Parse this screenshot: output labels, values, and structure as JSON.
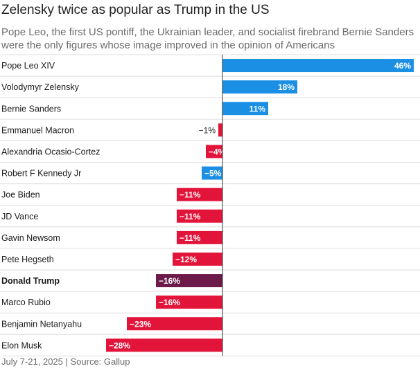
{
  "chart_data": {
    "type": "bar",
    "orientation": "horizontal",
    "title": "Zelensky twice as popular as Trump in the US",
    "subtitle": "Pope Leo, the first US pontiff, the Ukrainian leader, and socialist firebrand Bernie Sanders were the only figures whose image improved in the opinion of Americans",
    "categories": [
      "Pope Leo XIV",
      "Volodymyr Zelensky",
      "Bernie Sanders",
      "Emmanuel Macron",
      "Alexandria Ocasio-Cortez",
      "Robert F Kennedy Jr",
      "Joe Biden",
      "JD Vance",
      "Gavin Newsom",
      "Pete Hegseth",
      "Donald Trump",
      "Marco Rubio",
      "Benjamin Netanyahu",
      "Elon Musk"
    ],
    "values": [
      46,
      18,
      11,
      -1,
      -4,
      -5,
      -11,
      -11,
      -11,
      -12,
      -16,
      -16,
      -23,
      -28
    ],
    "value_labels": [
      "46%",
      "18%",
      "11%",
      "−1%",
      "−4%",
      "−5%",
      "−11%",
      "−11%",
      "−11%",
      "−12%",
      "−16%",
      "−16%",
      "−23%",
      "−28%"
    ],
    "bar_colors": [
      "#1a8fe3",
      "#1a8fe3",
      "#1a8fe3",
      "#e3143a",
      "#e3143a",
      "#1a8fe3",
      "#e3143a",
      "#e3143a",
      "#e3143a",
      "#e3143a",
      "#6b1a4a",
      "#e3143a",
      "#e3143a",
      "#e3143a"
    ],
    "highlight": "Donald Trump",
    "xlim": [
      -32,
      46
    ],
    "xlabel": "",
    "ylabel": "",
    "source": "July 7-21, 2025 | Source: Gallup"
  }
}
